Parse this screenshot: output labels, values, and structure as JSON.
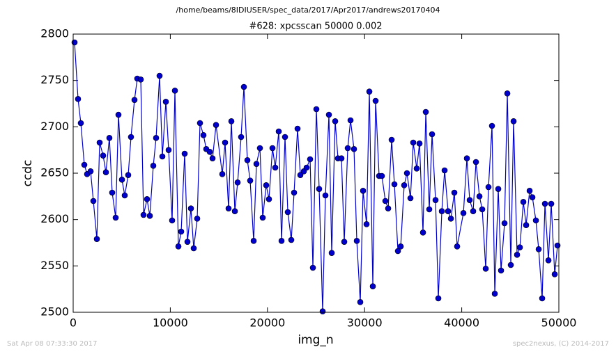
{
  "chart_data": {
    "type": "line",
    "suptitle": "/home/beams/8IDIUSER/spec_data/2017/Apr2017/andrews20170404",
    "title": "#628: xpcsscan 50000 0.002",
    "xlabel": "img_n",
    "ylabel": "ccdc",
    "footer_left": "Sat Apr 08 07:33:30 2017",
    "footer_right": "spec2nexus, (C) 2014-2017",
    "xlim": [
      0,
      50000
    ],
    "ylim": [
      2500,
      2800
    ],
    "xticks": [
      0,
      10000,
      20000,
      30000,
      40000,
      50000
    ],
    "yticks": [
      2500,
      2550,
      2600,
      2650,
      2700,
      2750,
      2800
    ],
    "color": "#0000cc",
    "x": [
      143,
      502,
      789,
      1148,
      1435,
      1793,
      2080,
      2439,
      2726,
      3085,
      3372,
      3730,
      4017,
      4376,
      4663,
      5022,
      5309,
      5667,
      5954,
      6313,
      6600,
      6959,
      7246,
      7604,
      7891,
      8250,
      8537,
      8896,
      9183,
      9541,
      9828,
      10187,
      10474,
      10833,
      11120,
      11478,
      11765,
      12124,
      12411,
      12770,
      13057,
      13415,
      13702,
      14061,
      14348,
      14707,
      15352,
      15639,
      15998,
      16285,
      16644,
      16931,
      17289,
      17576,
      17935,
      18222,
      18581,
      18868,
      19226,
      19513,
      19872,
      20159,
      20518,
      20805,
      21163,
      21450,
      21809,
      22096,
      22455,
      22742,
      23100,
      23387,
      23746,
      24033,
      24392,
      24679,
      25037,
      25324,
      25683,
      25970,
      26329,
      26616,
      26974,
      27261,
      27620,
      27907,
      28266,
      28553,
      28911,
      29198,
      29557,
      29844,
      30203,
      30490,
      30848,
      31135,
      31494,
      31781,
      32140,
      32427,
      32785,
      33072,
      33431,
      33718,
      34077,
      34364,
      34722,
      35009,
      35368,
      35655,
      36014,
      36301,
      36659,
      36946,
      37305,
      37592,
      37951,
      38238,
      38596,
      38883,
      39242,
      39529,
      40175,
      40533,
      40820,
      41179,
      41466,
      41825,
      42112,
      42470,
      42757,
      43116,
      43403,
      43762,
      44049,
      44407,
      44694,
      45053,
      45340,
      45699,
      45986,
      46344,
      46631,
      46990,
      47277,
      47636,
      47923,
      48281,
      48568,
      48927,
      49214,
      49573,
      49860
    ],
    "values": [
      2791,
      2730,
      2704,
      2659,
      2649,
      2652,
      2620,
      2579,
      2683,
      2669,
      2651,
      2688,
      2629,
      2602,
      2713,
      2643,
      2626,
      2648,
      2689,
      2729,
      2752,
      2751,
      2605,
      2622,
      2604,
      2658,
      2688,
      2755,
      2668,
      2727,
      2675,
      2599,
      2739,
      2571,
      2587,
      2671,
      2576,
      2612,
      2569,
      2601,
      2704,
      2691,
      2676,
      2673,
      2666,
      2702,
      2649,
      2683,
      2612,
      2706,
      2609,
      2640,
      2689,
      2743,
      2664,
      2642,
      2577,
      2660,
      2677,
      2602,
      2637,
      2622,
      2677,
      2656,
      2695,
      2577,
      2689,
      2608,
      2578,
      2629,
      2698,
      2648,
      2652,
      2656,
      2665,
      2548,
      2719,
      2633,
      2501,
      2626,
      2713,
      2564,
      2706,
      2666,
      2666,
      2576,
      2677,
      2707,
      2676,
      2577,
      2511,
      2631,
      2595,
      2738,
      2528,
      2728,
      2647,
      2647,
      2620,
      2612,
      2686,
      2638,
      2566,
      2571,
      2637,
      2650,
      2623,
      2683,
      2655,
      2682,
      2586,
      2716,
      2611,
      2692,
      2621,
      2515,
      2609,
      2653,
      2609,
      2601,
      2629,
      2571,
      2607,
      2666,
      2621,
      2609,
      2662,
      2625,
      2611,
      2547,
      2635,
      2701,
      2520,
      2633,
      2545,
      2596,
      2736,
      2551,
      2706,
      2562,
      2570,
      2619,
      2594,
      2631,
      2624,
      2599,
      2568,
      2515,
      2617,
      2556,
      2617,
      2541,
      2572
    ]
  }
}
